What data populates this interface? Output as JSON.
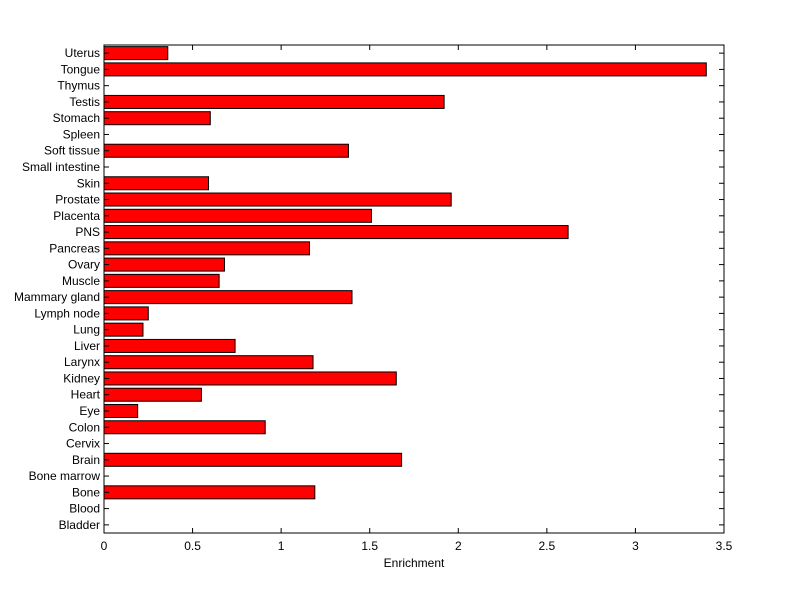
{
  "chart_data": {
    "type": "bar",
    "orientation": "horizontal",
    "xlabel": "Enrichment",
    "ylabel": "",
    "xlim": [
      0,
      3.5
    ],
    "xticks": [
      0,
      0.5,
      1,
      1.5,
      2,
      2.5,
      3,
      3.5
    ],
    "xtick_labels": [
      "0",
      "0.5",
      "1",
      "1.5",
      "2",
      "2.5",
      "3",
      "3.5"
    ],
    "grid": false,
    "bar_color": "#ff0000",
    "categories": [
      "Bladder",
      "Blood",
      "Bone",
      "Bone marrow",
      "Brain",
      "Cervix",
      "Colon",
      "Eye",
      "Heart",
      "Kidney",
      "Larynx",
      "Liver",
      "Lung",
      "Lymph node",
      "Mammary gland",
      "Muscle",
      "Ovary",
      "Pancreas",
      "PNS",
      "Placenta",
      "Prostate",
      "Skin",
      "Small intestine",
      "Soft tissue",
      "Spleen",
      "Stomach",
      "Testis",
      "Thymus",
      "Tongue",
      "Uterus"
    ],
    "values": [
      0,
      0,
      1.19,
      0,
      1.68,
      0,
      0.91,
      0.19,
      0.55,
      1.65,
      1.18,
      0.74,
      0.22,
      0.25,
      1.4,
      0.65,
      0.68,
      1.16,
      2.62,
      1.51,
      1.96,
      0.59,
      0,
      1.38,
      0,
      0.6,
      1.92,
      0,
      3.4,
      0.36
    ]
  }
}
